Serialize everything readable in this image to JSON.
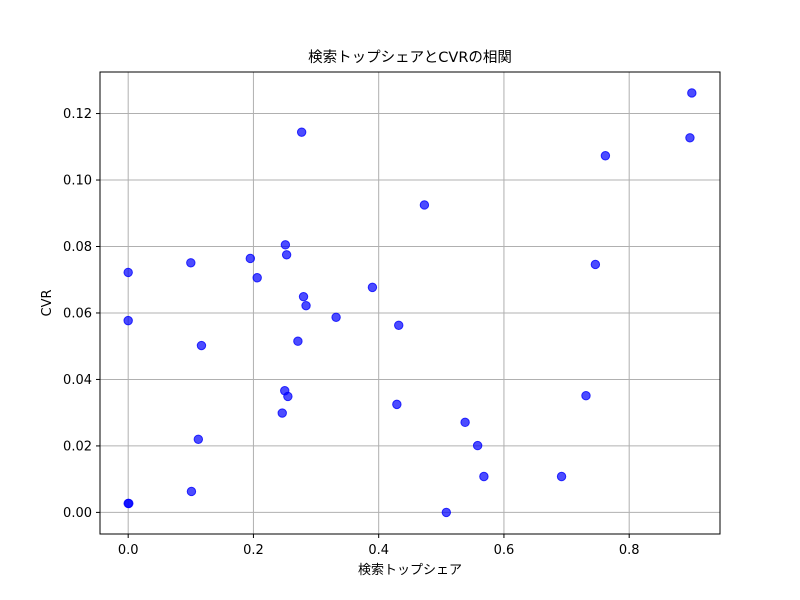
{
  "chart_data": {
    "type": "scatter",
    "title": "検索トップシェアとCVRの相関",
    "xlabel": "検索トップシェア",
    "ylabel": "CVR",
    "xlim": [
      -0.045,
      0.945
    ],
    "ylim": [
      -0.0065,
      0.1325
    ],
    "xticks": [
      0.0,
      0.2,
      0.4,
      0.6,
      0.8
    ],
    "xtick_labels": [
      "0.0",
      "0.2",
      "0.4",
      "0.6",
      "0.8"
    ],
    "yticks": [
      0.0,
      0.02,
      0.04,
      0.06,
      0.08,
      0.1,
      0.12
    ],
    "ytick_labels": [
      "0.00",
      "0.02",
      "0.04",
      "0.06",
      "0.08",
      "0.10",
      "0.12"
    ],
    "grid": true,
    "color": "#0000ff",
    "series": [
      {
        "points": [
          [
            0.0,
            0.0722
          ],
          [
            0.0,
            0.0577
          ],
          [
            0.0,
            0.0027
          ],
          [
            0.001,
            0.0027
          ],
          [
            0.1,
            0.0751
          ],
          [
            0.101,
            0.0063
          ],
          [
            0.112,
            0.022
          ],
          [
            0.117,
            0.0502
          ],
          [
            0.195,
            0.0764
          ],
          [
            0.206,
            0.0706
          ],
          [
            0.246,
            0.0299
          ],
          [
            0.25,
            0.0366
          ],
          [
            0.251,
            0.0805
          ],
          [
            0.253,
            0.0775
          ],
          [
            0.255,
            0.0349
          ],
          [
            0.271,
            0.0515
          ],
          [
            0.277,
            0.1144
          ],
          [
            0.28,
            0.0649
          ],
          [
            0.284,
            0.0622
          ],
          [
            0.332,
            0.0587
          ],
          [
            0.39,
            0.0677
          ],
          [
            0.429,
            0.0325
          ],
          [
            0.432,
            0.0563
          ],
          [
            0.473,
            0.0925
          ],
          [
            0.508,
            0.0
          ],
          [
            0.538,
            0.0271
          ],
          [
            0.558,
            0.0201
          ],
          [
            0.568,
            0.0108
          ],
          [
            0.692,
            0.0108
          ],
          [
            0.731,
            0.0351
          ],
          [
            0.746,
            0.0746
          ],
          [
            0.762,
            0.1073
          ],
          [
            0.897,
            0.1127
          ],
          [
            0.9,
            0.1262
          ]
        ]
      }
    ]
  }
}
